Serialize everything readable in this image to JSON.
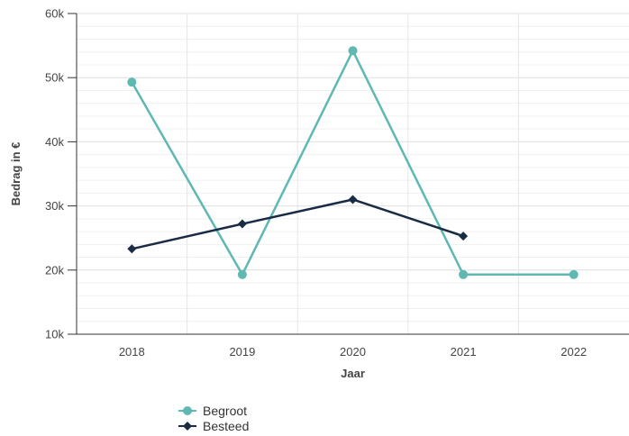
{
  "chart_data": {
    "type": "line",
    "categories": [
      "2018",
      "2019",
      "2020",
      "2021",
      "2022"
    ],
    "xlabel": "Jaar",
    "ylabel": "Bedrag in €",
    "ylim": [
      10000,
      60000
    ],
    "yticks": [
      {
        "value": 10000,
        "label": "10k"
      },
      {
        "value": 20000,
        "label": "20k"
      },
      {
        "value": 30000,
        "label": "30k"
      },
      {
        "value": 40000,
        "label": "40k"
      },
      {
        "value": 50000,
        "label": "50k"
      },
      {
        "value": 60000,
        "label": "60k"
      }
    ],
    "grid": true,
    "legend_position": "bottom-left",
    "series": [
      {
        "name": "Begroot",
        "color": "#5fb8b2",
        "marker": "circle",
        "values": [
          49300,
          19300,
          54200,
          19300,
          19300
        ]
      },
      {
        "name": "Besteed",
        "color": "#1a2b45",
        "marker": "diamond",
        "values": [
          23300,
          27200,
          31000,
          25300,
          null
        ]
      }
    ]
  }
}
